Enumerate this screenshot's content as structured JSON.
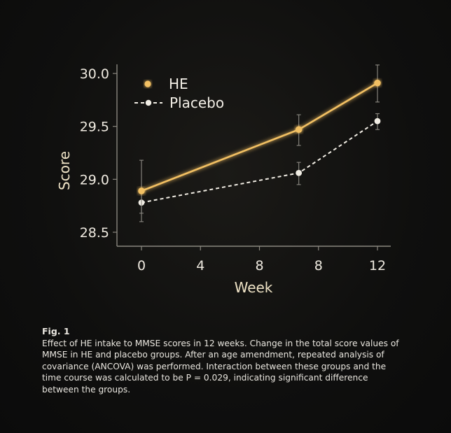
{
  "chart_data": {
    "type": "line",
    "x": [
      0,
      8,
      12
    ],
    "xticks": [
      "0",
      "4",
      "8",
      "8",
      "12"
    ],
    "yticks": [
      "30.0",
      "29.5",
      "29.0",
      "28.5"
    ],
    "xlabel": "Week",
    "ylabel": "Score",
    "ylim": [
      28.35,
      30.1
    ],
    "series": [
      {
        "name": "HE",
        "values": [
          28.89,
          29.47,
          29.91
        ],
        "err_low": [
          28.6,
          29.32,
          29.73
        ],
        "err_high": [
          29.18,
          29.61,
          30.08
        ],
        "color": "#f2c063",
        "style": "solid"
      },
      {
        "name": "Placebo",
        "values": [
          28.78,
          29.06,
          29.55
        ],
        "err_low": [
          28.68,
          28.95,
          29.47
        ],
        "err_high": [
          28.88,
          29.16,
          29.62
        ],
        "color": "#f1ede4",
        "style": "dashed"
      }
    ],
    "legend_position": "top-left",
    "grid": false
  },
  "caption": {
    "figure_label": "Fig. 1",
    "text": "Effect of HE intake to MMSE scores in 12 weeks. Change in the total score values of MMSE in HE and placebo groups. After an age amendment, repeated analysis of covariance (ANCOVA) was performed. Interaction between these groups and the time course was calculated to be P = 0.029, indicating significant difference between the groups."
  }
}
